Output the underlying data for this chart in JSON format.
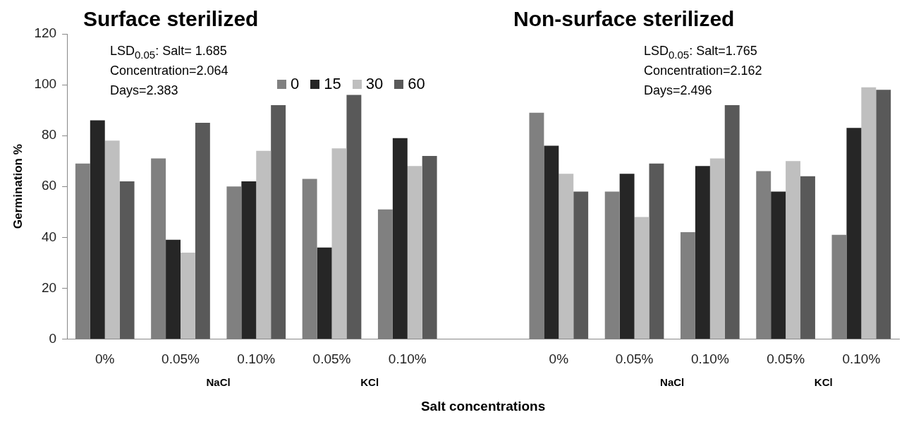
{
  "chart_data": {
    "type": "bar",
    "ylabel": "Germination %",
    "xlabel": "Salt concentrations",
    "categories": [
      "0%",
      "0.05%",
      "0.10%",
      "0.05%",
      "0.10%",
      null,
      "0%",
      "0.05%",
      "0.10%",
      "0.05%",
      "0.10%"
    ],
    "series": [
      {
        "name": "0",
        "color": "#808080",
        "values": [
          69,
          71,
          60,
          63,
          51,
          null,
          89,
          58,
          42,
          66,
          41
        ]
      },
      {
        "name": "15",
        "color": "#262626",
        "values": [
          86,
          39,
          62,
          36,
          79,
          null,
          76,
          65,
          68,
          58,
          83
        ]
      },
      {
        "name": "30",
        "color": "#bfbfbf",
        "values": [
          78,
          34,
          74,
          75,
          68,
          null,
          65,
          48,
          71,
          70,
          99
        ]
      },
      {
        "name": "60",
        "color": "#595959",
        "values": [
          62,
          85,
          92,
          96,
          72,
          null,
          58,
          69,
          92,
          64,
          98
        ]
      }
    ],
    "ylim": [
      0,
      120
    ],
    "yticks": [
      0,
      20,
      40,
      60,
      80,
      100,
      120
    ],
    "grid": false,
    "legend": "top",
    "annotations": [
      "Surface sterilized",
      "Non-surface sterilized",
      "LSD$_{0.05}$: Salt= 1.685",
      "Concentration=2.064",
      "Days=2.383",
      "LSD$_{0.05}$: Salt=1.765",
      "Concentration=2.162",
      "Days=2.496",
      "NaCl",
      "KCl",
      "NaCl",
      "KCl"
    ]
  }
}
